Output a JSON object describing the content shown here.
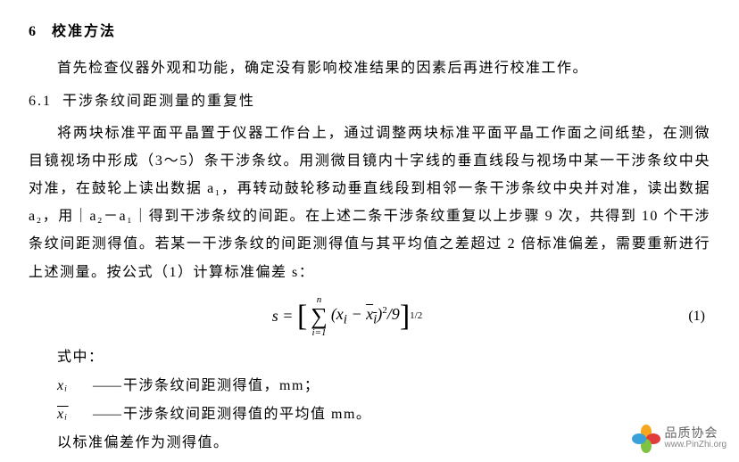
{
  "section": {
    "num": "6",
    "title": "校准方法"
  },
  "intro": "首先检查仪器外观和功能，确定没有影响校准结果的因素后再进行校准工作。",
  "sub": {
    "num": "6.1",
    "title": "干涉条纹间距测量的重复性"
  },
  "body": "将两块标准平面平晶置于仪器工作台上，通过调整两块标准平面平晶工作面之间纸垫，在测微目镜视场中形成（3～5）条干涉条纹。用测微目镜内十字线的垂直线段与视场中某一干涉条纹中央对准，在鼓轮上读出数据 a₁，再转动鼓轮移动垂直线段到相邻一条干涉条纹中央并对准，读出数据 a₂，用｜a₂－a₁｜得到干涉条纹的间距。在上述二条干涉条纹重复以上步骤 9 次，共得到 10 个干涉条纹间距测得值。若某一干涉条纹的间距测得值与其平均值之差超过 2 倍标准偏差，需要重新进行上述测量。按公式（1）计算标准偏差 s：",
  "equation": {
    "lhs": "s =",
    "sum_top": "n",
    "sum_bot": "i=1",
    "inner_a": "(x",
    "inner_sub": "i",
    "inner_b": " − ",
    "inner_bar": "x",
    "inner_bar_sub": "i",
    "inner_c": ")",
    "sq": "2",
    "div": "/9",
    "exp": "1/2",
    "num": "(1)"
  },
  "where_label": "式中：",
  "defs": {
    "d1_sym": "xᵢ",
    "d1_text": "干涉条纹间距测得值，mm；",
    "d2_sym_bar": "xᵢ",
    "d2_text": "干涉条纹间距测得值的平均值 mm。"
  },
  "footer": "以标准偏差作为测得值。",
  "dash": "——",
  "watermark": {
    "cn": "品质协会",
    "en": "www.PinZhi.org",
    "colors": {
      "p1": "#f6a81c",
      "p2": "#e23b3b",
      "p3": "#7ec242",
      "p4": "#3aa0da"
    }
  }
}
